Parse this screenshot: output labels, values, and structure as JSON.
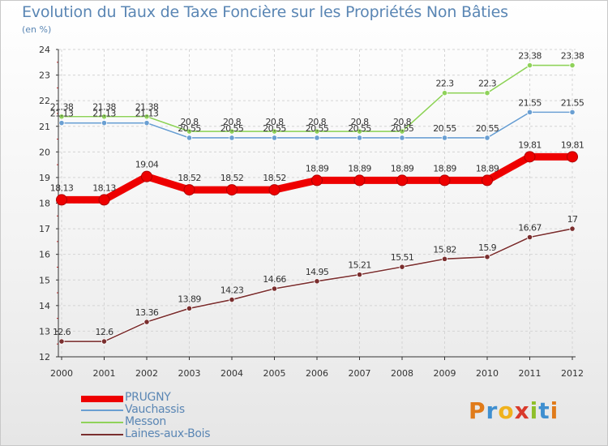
{
  "title": "Evolution du Taux de Taxe Foncière sur les Propriétés Non Bâties",
  "unit_label": "(en %)",
  "logo_text": "Proxiti",
  "logo_colors": [
    "#e07b1a",
    "#3f8fd0",
    "#f0b21c",
    "#d93a2b",
    "#8fbf2a",
    "#3f8fd0",
    "#e07b1a"
  ],
  "chart_data": {
    "type": "line",
    "title": "Evolution du Taux de Taxe Foncière sur les Propriétés Non Bâties",
    "ylabel": "(en %)",
    "xlabel": "",
    "x": [
      "2000",
      "2001",
      "2002",
      "2003",
      "2004",
      "2005",
      "2006",
      "2007",
      "2008",
      "2009",
      "2010",
      "2011",
      "2012"
    ],
    "ylim": [
      12,
      24
    ],
    "yticks": [
      12,
      13,
      14,
      15,
      16,
      17,
      18,
      19,
      20,
      21,
      22,
      23,
      24
    ],
    "grid": true,
    "legend_position": "bottom-left",
    "series": [
      {
        "name": "PRUGNY",
        "color": "#ee0000",
        "values": [
          18.13,
          18.13,
          19.04,
          18.52,
          18.52,
          18.52,
          18.89,
          18.89,
          18.89,
          18.89,
          18.89,
          19.81,
          19.81
        ],
        "labels": [
          "18.13",
          "18.13",
          "19.04",
          "18.52",
          "18.52",
          "18.52",
          "18.89",
          "18.89",
          "18.89",
          "18.89",
          "18.89",
          "19.81",
          "19.81"
        ]
      },
      {
        "name": "Vauchassis",
        "color": "#6a9fd2",
        "values": [
          21.13,
          21.13,
          21.13,
          20.55,
          20.55,
          20.55,
          20.55,
          20.55,
          20.55,
          20.55,
          20.55,
          21.55,
          21.55
        ],
        "labels": [
          "21.13",
          "21.13",
          "21.13",
          "20.55",
          "20.55",
          "20.55",
          "20.55",
          "20.55",
          "20.55",
          "20.55",
          "20.55",
          "21.55",
          "21.55"
        ]
      },
      {
        "name": "Messon",
        "color": "#8fd25a",
        "values": [
          21.38,
          21.38,
          21.38,
          20.8,
          20.8,
          20.8,
          20.8,
          20.8,
          20.8,
          22.3,
          22.3,
          23.38,
          23.38
        ],
        "labels": [
          "21.38",
          "21.38",
          "21.38",
          "20.8",
          "20.8",
          "20.8",
          "20.8",
          "20.8",
          "20.8",
          "22.3",
          "22.3",
          "23.38",
          "23.38"
        ]
      },
      {
        "name": "Laines-aux-Bois",
        "color": "#7a2e2e",
        "values": [
          12.6,
          12.6,
          13.36,
          13.89,
          14.23,
          14.66,
          14.95,
          15.21,
          15.51,
          15.82,
          15.9,
          16.67,
          17
        ],
        "labels": [
          "12.6",
          "12.6",
          "13.36",
          "13.89",
          "14.23",
          "14.66",
          "14.95",
          "15.21",
          "15.51",
          "15.82",
          "15.9",
          "16.67",
          "17"
        ]
      }
    ]
  }
}
